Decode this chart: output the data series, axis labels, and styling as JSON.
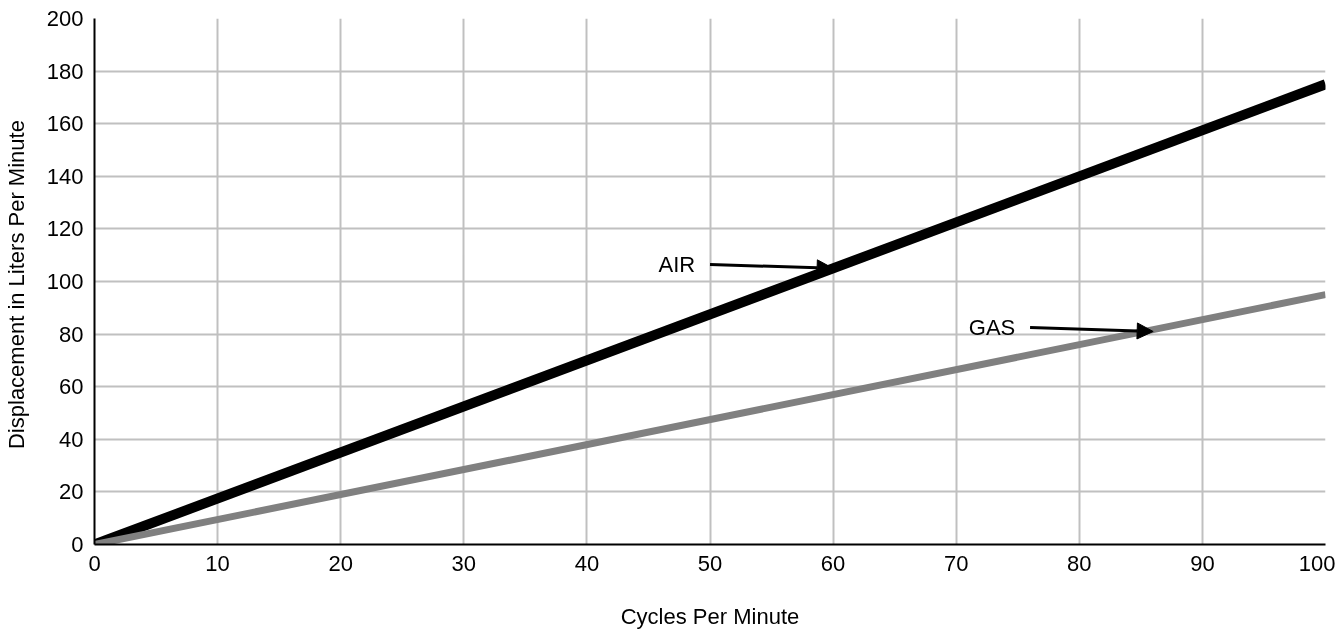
{
  "chart_data": {
    "type": "line",
    "xlabel": "Cycles Per Minute",
    "ylabel": "Displacement  in Liters Per Minute",
    "x": [
      0,
      100
    ],
    "series": [
      {
        "color": "#000000",
        "values": [
          0,
          175
        ]
      },
      {
        "color": "#808080",
        "values": [
          0,
          95
        ]
      }
    ],
    "xlim": [
      0,
      100
    ],
    "ylim": [
      0,
      200
    ],
    "xticks": [
      0,
      10,
      20,
      30,
      40,
      50,
      60,
      70,
      80,
      90,
      100
    ],
    "yticks": [
      0,
      20,
      40,
      60,
      80,
      100,
      120,
      140,
      160,
      180,
      200
    ],
    "grid": true,
    "marker": "none",
    "line_style": "solid",
    "annotations": [
      {
        "text": "AIR",
        "x": 60,
        "y": 105
      },
      {
        "text": "GAS",
        "x": 86,
        "y": 81
      }
    ]
  }
}
